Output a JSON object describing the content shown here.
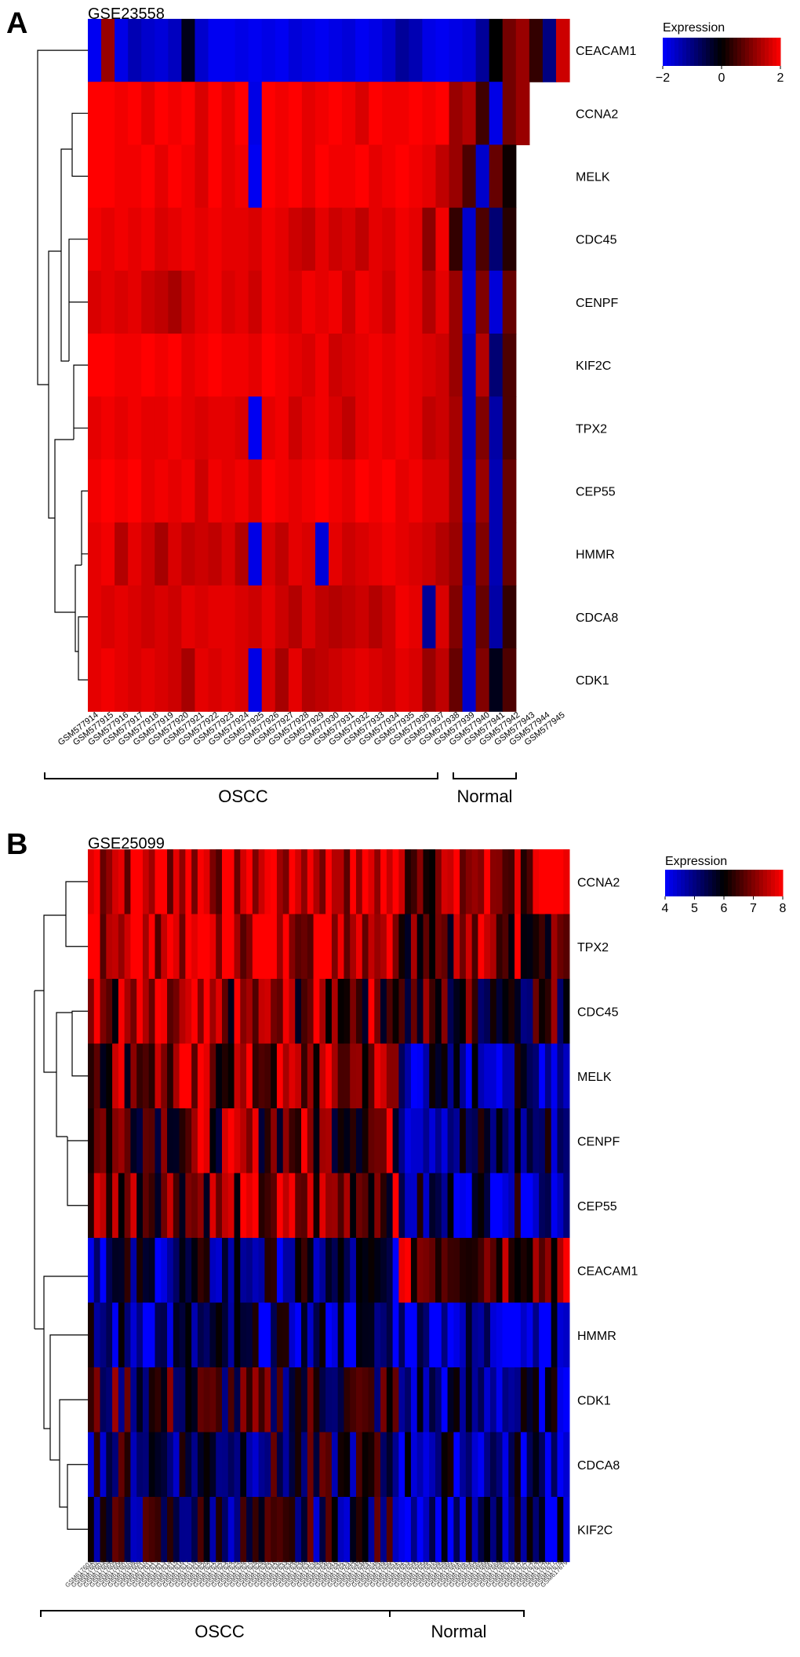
{
  "panels": [
    {
      "id": "A",
      "panel_letter": "A",
      "dataset_title": "GSE23558",
      "legend": {
        "title": "Expression",
        "ticks": [
          "−2",
          "0",
          "2"
        ],
        "tick_values": [
          -2,
          0,
          2
        ],
        "range": [
          -2,
          2
        ]
      },
      "genes": [
        "CEACAM1",
        "CCNA2",
        "MELK",
        "CDC45",
        "CENPF",
        "KIF2C",
        "TPX2",
        "CEP55",
        "HMMR",
        "CDCA8",
        "CDK1"
      ],
      "samples": [
        "GSM577914",
        "GSM577915",
        "GSM577916",
        "GSM577917",
        "GSM577918",
        "GSM577919",
        "GSM577920",
        "GSM577921",
        "GSM577922",
        "GSM577923",
        "GSM577924",
        "GSM577925",
        "GSM577926",
        "GSM577927",
        "GSM577928",
        "GSM577929",
        "GSM577930",
        "GSM577931",
        "GSM577932",
        "GSM577933",
        "GSM577934",
        "GSM577935",
        "GSM577936",
        "GSM577937",
        "GSM577938",
        "GSM577939",
        "GSM577940",
        "GSM577941",
        "GSM577942",
        "GSM577943",
        "GSM577944",
        "GSM577945"
      ],
      "groups": [
        {
          "label": "OSCC",
          "start": 0,
          "end": 23
        },
        {
          "label": "Normal",
          "start": 25,
          "end": 28
        }
      ]
    },
    {
      "id": "B",
      "panel_letter": "B",
      "dataset_title": "GSE25099",
      "legend": {
        "title": "Expression",
        "ticks": [
          "4",
          "5",
          "6",
          "7",
          "8"
        ],
        "tick_values": [
          4,
          5,
          6,
          7,
          8
        ],
        "range": [
          4,
          8
        ]
      },
      "genes": [
        "CCNA2",
        "TPX2",
        "CDC45",
        "MELK",
        "CENPF",
        "CEP55",
        "CEACAM1",
        "HMMR",
        "CDK1",
        "CDCA8",
        "KIF2C"
      ],
      "sample_prefix": "GSM6176",
      "sample_count": 79,
      "groups": [
        {
          "label": "OSCC",
          "start": 0,
          "end": 50
        },
        {
          "label": "Normal",
          "start": 51,
          "end": 71
        }
      ]
    }
  ],
  "chart_data": [
    {
      "type": "heatmap",
      "title": "GSE23558",
      "colorbar_label": "Expression",
      "color_range": [
        -2,
        2
      ],
      "colormap": [
        "#0000ff",
        "#000000",
        "#ff0000"
      ],
      "rows": [
        "CEACAM1",
        "CCNA2",
        "MELK",
        "CDC45",
        "CENPF",
        "KIF2C",
        "TPX2",
        "CEP55",
        "HMMR",
        "CDCA8",
        "CDK1"
      ],
      "columns": [
        "GSM577914",
        "GSM577915",
        "GSM577916",
        "GSM577917",
        "GSM577918",
        "GSM577919",
        "GSM577920",
        "GSM577921",
        "GSM577922",
        "GSM577923",
        "GSM577924",
        "GSM577925",
        "GSM577926",
        "GSM577927",
        "GSM577928",
        "GSM577929",
        "GSM577930",
        "GSM577931",
        "GSM577932",
        "GSM577933",
        "GSM577934",
        "GSM577935",
        "GSM577936",
        "GSM577937",
        "GSM577938",
        "GSM577939",
        "GSM577940",
        "GSM577941",
        "GSM577942",
        "GSM577943",
        "GSM577944",
        "GSM577945"
      ],
      "values": [
        [
          -1.9,
          1.2,
          -1.8,
          -1.4,
          -1.6,
          -1.7,
          -1.5,
          -0.2,
          -1.6,
          -1.9,
          -1.9,
          -1.8,
          -1.9,
          -1.8,
          -1.9,
          -1.7,
          -1.8,
          -1.9,
          -1.8,
          -1.7,
          -1.9,
          -1.8,
          -1.6,
          -1.2,
          -1.4,
          -1.8,
          -1.9,
          -1.8,
          -1.7,
          -1.2,
          0.0,
          0.9,
          1.2,
          0.4,
          -1.0,
          1.6
        ],
        [
          2.0,
          2.0,
          1.9,
          2.0,
          1.8,
          2.0,
          1.9,
          2.0,
          1.7,
          2.0,
          1.8,
          2.0,
          -1.8,
          2.0,
          1.9,
          2.0,
          1.8,
          1.9,
          2.0,
          1.9,
          1.7,
          2.0,
          1.9,
          1.9,
          2.0,
          1.9,
          2.0,
          1.2,
          1.4,
          0.5,
          -1.8,
          0.9,
          1.2
        ],
        [
          2.0,
          2.0,
          1.9,
          1.9,
          2.0,
          1.8,
          2.0,
          1.9,
          1.7,
          2.0,
          1.8,
          1.9,
          -1.9,
          2.0,
          1.9,
          2.0,
          1.8,
          2.0,
          1.9,
          1.9,
          2.0,
          1.8,
          1.9,
          2.0,
          1.9,
          1.8,
          1.5,
          1.2,
          0.6,
          -1.6,
          0.8,
          0.1
        ],
        [
          1.9,
          1.8,
          1.9,
          1.8,
          1.9,
          1.7,
          1.8,
          1.9,
          1.8,
          1.9,
          1.8,
          1.8,
          1.7,
          1.9,
          1.8,
          1.6,
          1.5,
          1.8,
          1.6,
          1.7,
          1.5,
          1.8,
          1.7,
          1.9,
          1.8,
          1.1,
          1.9,
          0.4,
          -1.6,
          0.6,
          -0.9,
          0.3
        ],
        [
          1.7,
          1.8,
          1.7,
          1.8,
          1.6,
          1.5,
          1.3,
          1.6,
          1.8,
          1.9,
          1.7,
          1.8,
          1.6,
          1.9,
          1.8,
          1.7,
          1.9,
          1.8,
          1.9,
          1.6,
          1.9,
          1.8,
          1.6,
          1.9,
          1.8,
          1.4,
          1.8,
          1.2,
          -1.7,
          1.0,
          -1.7,
          0.8
        ],
        [
          2.0,
          2.0,
          1.9,
          1.9,
          2.0,
          1.9,
          2.0,
          1.8,
          1.9,
          2.0,
          1.9,
          1.9,
          1.8,
          2.0,
          1.9,
          1.8,
          1.7,
          1.9,
          1.6,
          1.7,
          1.8,
          1.9,
          1.8,
          1.9,
          1.8,
          1.7,
          1.6,
          1.2,
          -1.5,
          1.4,
          -0.9,
          0.6
        ],
        [
          1.8,
          1.9,
          1.8,
          1.9,
          1.8,
          1.8,
          1.9,
          1.8,
          1.7,
          1.8,
          1.8,
          1.7,
          -1.9,
          1.8,
          1.9,
          1.6,
          1.8,
          1.9,
          1.7,
          1.5,
          1.8,
          1.9,
          1.8,
          1.9,
          1.8,
          1.5,
          1.6,
          1.3,
          -1.5,
          1.0,
          -1.3,
          0.6
        ],
        [
          1.9,
          2.0,
          1.9,
          2.0,
          1.8,
          1.9,
          1.8,
          1.9,
          1.6,
          1.9,
          1.8,
          1.9,
          1.7,
          2.0,
          1.9,
          1.8,
          1.9,
          2.0,
          1.9,
          1.8,
          2.0,
          1.9,
          2.0,
          1.8,
          1.9,
          1.7,
          1.7,
          1.3,
          -1.6,
          1.2,
          -1.4,
          0.8
        ],
        [
          1.8,
          1.9,
          1.4,
          1.8,
          1.6,
          1.3,
          1.7,
          1.5,
          1.6,
          1.5,
          1.7,
          1.4,
          -1.8,
          1.7,
          1.5,
          1.8,
          1.7,
          -1.7,
          1.8,
          1.6,
          1.7,
          1.8,
          1.9,
          1.8,
          1.7,
          1.6,
          1.4,
          1.2,
          -1.5,
          1.0,
          -1.4,
          0.8
        ],
        [
          1.8,
          1.7,
          1.8,
          1.7,
          1.6,
          1.7,
          1.6,
          1.8,
          1.7,
          1.8,
          1.8,
          1.7,
          1.6,
          1.8,
          1.6,
          1.4,
          1.7,
          1.5,
          1.4,
          1.5,
          1.6,
          1.4,
          1.6,
          1.9,
          1.8,
          -1.2,
          1.7,
          1.0,
          -1.6,
          0.8,
          -1.3,
          0.4
        ],
        [
          1.8,
          1.9,
          1.8,
          1.7,
          1.8,
          1.7,
          1.6,
          1.3,
          1.8,
          1.7,
          1.8,
          1.7,
          -1.8,
          1.7,
          1.3,
          1.8,
          1.4,
          1.5,
          1.6,
          1.7,
          1.8,
          1.7,
          1.6,
          1.8,
          1.7,
          1.2,
          1.5,
          0.8,
          -1.6,
          1.0,
          -0.2,
          0.6
        ]
      ]
    },
    {
      "type": "heatmap",
      "title": "GSE25099",
      "colorbar_label": "Expression",
      "color_range": [
        4,
        8
      ],
      "colormap": [
        "#0000ff",
        "#000000",
        "#ff0000"
      ],
      "rows": [
        "CCNA2",
        "TPX2",
        "CDC45",
        "MELK",
        "CENPF",
        "CEP55",
        "CEACAM1",
        "HMMR",
        "CDK1",
        "CDCA8",
        "KIF2C"
      ],
      "column_count": 79,
      "row_profile": {
        "note": "approximate average expression per gene across columns",
        "oscc_mean": [
          7.8,
          7.9,
          6.9,
          7.0,
          6.8,
          7.0,
          5.2,
          5.0,
          6.0,
          5.6,
          5.6
        ],
        "normal_mean": [
          7.2,
          7.0,
          6.2,
          5.0,
          5.3,
          5.1,
          7.1,
          4.7,
          5.0,
          5.0,
          4.9
        ]
      }
    }
  ]
}
